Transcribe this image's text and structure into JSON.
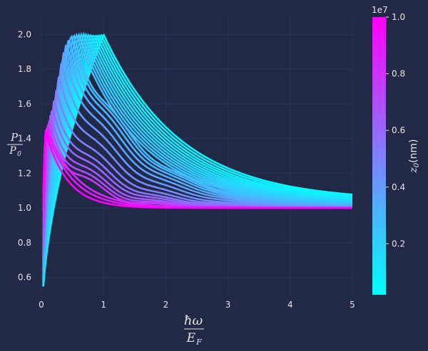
{
  "chart_data": {
    "type": "line",
    "title": "",
    "xlabel": {
      "numerator": "ħω",
      "denominator": "E",
      "denominator_sub": "F"
    },
    "ylabel": {
      "numerator": "P",
      "denominator": "P",
      "denominator_sub": "0"
    },
    "xlim": [
      0,
      5
    ],
    "ylim": [
      0.5,
      2.1
    ],
    "xticks": [
      "0",
      "1",
      "2",
      "3",
      "4",
      "5"
    ],
    "yticks": [
      "0.6",
      "0.8",
      "1.0",
      "1.2",
      "1.4",
      "1.6",
      "1.8",
      "2.0"
    ],
    "grid": true,
    "colormap": {
      "low": "#00ffff",
      "high": "#ff00ff",
      "name": "cool"
    },
    "colorbar": {
      "label_var": "z",
      "label_sub": "0",
      "label_unit": "(nm)",
      "ticks": [
        "0.2",
        "0.4",
        "0.6",
        "0.8",
        "1.0"
      ],
      "offset_text": "1e7",
      "range": [
        0.02,
        1.0
      ]
    },
    "series_description": "family of curves P/P0 vs ħω/EF for many z0 values; small z0 (cyan) rise to 2.0 with broad peak, large z0 (magenta) flatten to 1.0",
    "series": [
      {
        "z0": 0.02,
        "peak_x": 1.0,
        "peak_y": 2.0,
        "tail_y": 1.04
      },
      {
        "z0": 0.04,
        "peak_x": 0.96,
        "peak_y": 2.0,
        "tail_y": 1.035
      },
      {
        "z0": 0.06,
        "peak_x": 0.92,
        "peak_y": 2.0,
        "tail_y": 1.03
      },
      {
        "z0": 0.08,
        "peak_x": 0.88,
        "peak_y": 2.0,
        "tail_y": 1.027
      },
      {
        "z0": 0.1,
        "peak_x": 0.84,
        "peak_y": 2.0,
        "tail_y": 1.024
      },
      {
        "z0": 0.12,
        "peak_x": 0.8,
        "peak_y": 2.0,
        "tail_y": 1.021
      },
      {
        "z0": 0.14,
        "peak_x": 0.76,
        "peak_y": 2.0,
        "tail_y": 1.019
      },
      {
        "z0": 0.16,
        "peak_x": 0.72,
        "peak_y": 2.0,
        "tail_y": 1.017
      },
      {
        "z0": 0.18,
        "peak_x": 0.68,
        "peak_y": 2.0,
        "tail_y": 1.015
      },
      {
        "z0": 0.2,
        "peak_x": 0.64,
        "peak_y": 2.0,
        "tail_y": 1.013
      },
      {
        "z0": 0.22,
        "peak_x": 0.6,
        "peak_y": 2.0,
        "tail_y": 1.011
      },
      {
        "z0": 0.24,
        "peak_x": 0.56,
        "peak_y": 2.0,
        "tail_y": 1.009
      },
      {
        "z0": 0.26,
        "peak_x": 0.52,
        "peak_y": 2.0,
        "tail_y": 1.007
      },
      {
        "z0": 0.28,
        "peak_x": 0.48,
        "peak_y": 2.0,
        "tail_y": 1.006
      },
      {
        "z0": 0.3,
        "peak_x": 0.44,
        "peak_y": 1.98,
        "tail_y": 1.005
      },
      {
        "z0": 0.33,
        "peak_x": 0.4,
        "peak_y": 1.95,
        "tail_y": 1.004
      },
      {
        "z0": 0.36,
        "peak_x": 0.36,
        "peak_y": 1.9,
        "tail_y": 1.003
      },
      {
        "z0": 0.4,
        "peak_x": 0.32,
        "peak_y": 1.83,
        "tail_y": 1.002
      },
      {
        "z0": 0.45,
        "peak_x": 0.28,
        "peak_y": 1.76,
        "tail_y": 1.0
      },
      {
        "z0": 0.5,
        "peak_x": 0.24,
        "peak_y": 1.68,
        "tail_y": 1.0
      },
      {
        "z0": 0.55,
        "peak_x": 0.2,
        "peak_y": 1.62,
        "tail_y": 1.0
      },
      {
        "z0": 0.6,
        "peak_x": 0.17,
        "peak_y": 1.58,
        "tail_y": 1.0
      },
      {
        "z0": 0.66,
        "peak_x": 0.14,
        "peak_y": 1.54,
        "tail_y": 1.0
      },
      {
        "z0": 0.72,
        "peak_x": 0.12,
        "peak_y": 1.51,
        "tail_y": 1.0
      },
      {
        "z0": 0.78,
        "peak_x": 0.1,
        "peak_y": 1.49,
        "tail_y": 1.0
      },
      {
        "z0": 0.85,
        "peak_x": 0.08,
        "peak_y": 1.47,
        "tail_y": 1.0
      },
      {
        "z0": 0.92,
        "peak_x": 0.07,
        "peak_y": 1.46,
        "tail_y": 1.0
      },
      {
        "z0": 1.0,
        "peak_x": 0.06,
        "peak_y": 1.45,
        "tail_y": 1.0
      }
    ]
  }
}
